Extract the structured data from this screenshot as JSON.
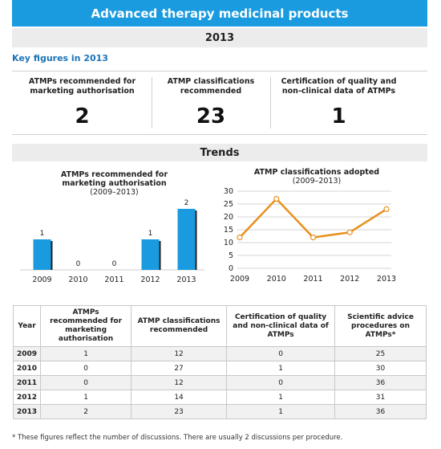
{
  "header": {
    "title": "Advanced therapy medicinal products",
    "year": "2013"
  },
  "key_figures": {
    "heading": "Key figures in 2013",
    "items": [
      {
        "label": "ATMPs recommended for marketing authorisation",
        "value": "2"
      },
      {
        "label": "ATMP classifications recommended",
        "value": "23"
      },
      {
        "label": "Certification of quality and non-clinical data of ATMPs",
        "value": "1"
      }
    ]
  },
  "trends": {
    "heading": "Trends"
  },
  "chart_data": [
    {
      "type": "bar",
      "title": "ATMPs recommended for marketing authorisation",
      "subtitle": "(2009–2013)",
      "categories": [
        "2009",
        "2010",
        "2011",
        "2012",
        "2013"
      ],
      "values": [
        1,
        0,
        0,
        1,
        2
      ],
      "color": "#1a9be0"
    },
    {
      "type": "line",
      "title": "ATMP classifications adopted",
      "subtitle": "(2009–2013)",
      "x": [
        "2009",
        "2010",
        "2011",
        "2012",
        "2013"
      ],
      "values": [
        12,
        27,
        12,
        14,
        23
      ],
      "ylim": [
        0,
        30
      ],
      "yticks": [
        0,
        5,
        10,
        15,
        20,
        25,
        30
      ],
      "grid": true,
      "color": "#e8901c"
    }
  ],
  "table": {
    "headers": [
      "Year",
      "ATMPs recommended for marketing authorisation",
      "ATMP classifications recommended",
      "Certification of quality and non-clinical data of ATMPs",
      "Scientific advice procedures on ATMPs*"
    ],
    "rows": [
      [
        "2009",
        "1",
        "12",
        "0",
        "25"
      ],
      [
        "2010",
        "0",
        "27",
        "1",
        "30"
      ],
      [
        "2011",
        "0",
        "12",
        "0",
        "36"
      ],
      [
        "2012",
        "1",
        "14",
        "1",
        "31"
      ],
      [
        "2013",
        "2",
        "23",
        "1",
        "36"
      ]
    ]
  },
  "footnote": "* These figures reflect the number of discussions. There are usually 2 discussions per procedure."
}
